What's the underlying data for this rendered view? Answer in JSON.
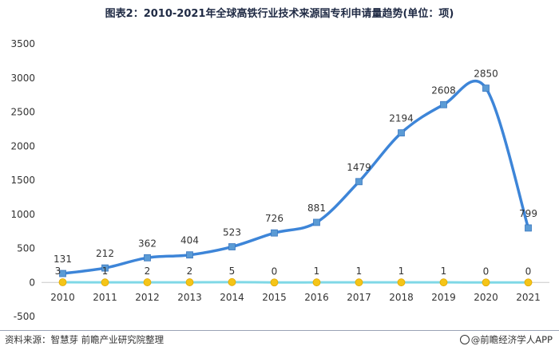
{
  "title": "图表2：2010-2021年全球高铁行业技术来源国专利申请量趋势(单位：项)",
  "source": "资料来源：智慧芽 前瞻产业研究院整理",
  "brand": "@前瞻经济学人APP",
  "chart_data": {
    "type": "line",
    "categories": [
      "2010",
      "2011",
      "2012",
      "2013",
      "2014",
      "2015",
      "2016",
      "2017",
      "2018",
      "2019",
      "2020",
      "2021"
    ],
    "series": [
      {
        "name": "",
        "values": [
          131,
          212,
          362,
          404,
          523,
          726,
          881,
          1479,
          2194,
          2608,
          2850,
          799
        ],
        "color": "#3d85d8",
        "marker": "square"
      },
      {
        "name": "",
        "values": [
          3,
          1,
          2,
          2,
          5,
          0,
          1,
          1,
          1,
          1,
          0,
          0
        ],
        "color": "#7fd8e6",
        "marker": "circle",
        "marker_color": "#f5c518"
      }
    ],
    "ylim": [
      -500,
      3500
    ],
    "yticks": [
      -500,
      0,
      500,
      1000,
      1500,
      2000,
      2500,
      3000,
      3500
    ],
    "grid": false,
    "legend": "none",
    "xlabel": "",
    "ylabel": ""
  }
}
